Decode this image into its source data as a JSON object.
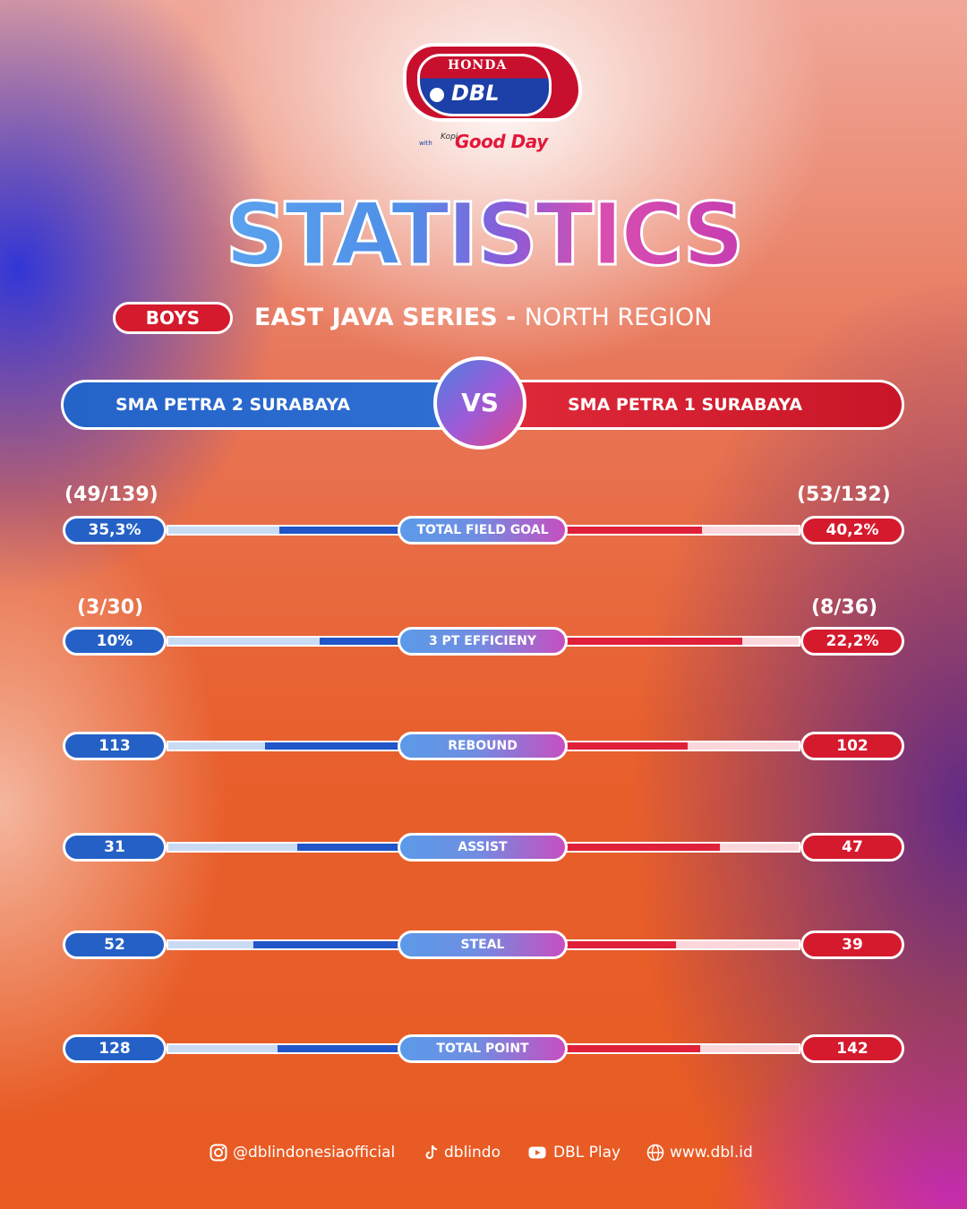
{
  "logo": {
    "brand": "HONDA",
    "league": "DBL",
    "with_text": "with",
    "kopi_text": "Kopi",
    "sponsor": "Good Day"
  },
  "title": "STATISTICS",
  "category_badge": "BOYS",
  "series": {
    "name": "EAST JAVA SERIES",
    "separator": " - ",
    "region": "NORTH REGION"
  },
  "teams": {
    "left": "SMA PETRA 2 SURABAYA",
    "vs": "VS",
    "right": "SMA PETRA 1 SURABAYA"
  },
  "colors": {
    "left_team": "#2460c6",
    "right_team": "#d51a2e"
  },
  "stats": [
    {
      "label": "TOTAL FIELD GOAL",
      "left_value": "35,3%",
      "right_value": "40,2%",
      "left_fraction": "(49/139)",
      "right_fraction": "(53/132)",
      "left_num": 35.3,
      "right_num": 40.2
    },
    {
      "label": "3 PT EFFICIENY",
      "left_value": "10%",
      "right_value": "22,2%",
      "left_fraction": "(3/30)",
      "right_fraction": "(8/36)",
      "left_num": 10,
      "right_num": 22.2
    },
    {
      "label": "REBOUND",
      "left_value": "113",
      "right_value": "102",
      "left_fraction": "",
      "right_fraction": "",
      "left_num": 113,
      "right_num": 102
    },
    {
      "label": "ASSIST",
      "left_value": "31",
      "right_value": "47",
      "left_fraction": "",
      "right_fraction": "",
      "left_num": 31,
      "right_num": 47
    },
    {
      "label": "STEAL",
      "left_value": "52",
      "right_value": "39",
      "left_fraction": "",
      "right_fraction": "",
      "left_num": 52,
      "right_num": 39
    },
    {
      "label": "TOTAL POINT",
      "left_value": "128",
      "right_value": "142",
      "left_fraction": "",
      "right_fraction": "",
      "left_num": 128,
      "right_num": 142
    }
  ],
  "footer": {
    "instagram": "@dblindonesiaofficial",
    "tiktok": "dblindo",
    "youtube": "DBL Play",
    "website": "www.dbl.id"
  }
}
